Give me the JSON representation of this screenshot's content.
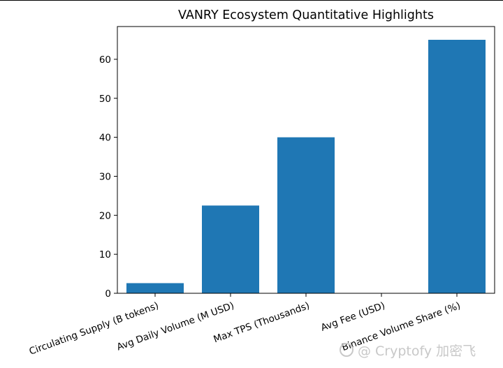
{
  "chart_data": {
    "type": "bar",
    "title": "VANRY Ecosystem Quantitative Highlights",
    "categories": [
      "Circulating Supply (B tokens)",
      "Avg Daily Volume (M USD)",
      "Max TPS (Thousands)",
      "Avg Fee (USD)",
      "Binance Volume Share (%)"
    ],
    "values": [
      2.6,
      22.5,
      40,
      0.0005,
      65
    ],
    "ylim": [
      0,
      68.4
    ],
    "yticks": [
      0,
      10,
      20,
      30,
      40,
      50,
      60
    ],
    "xlabel": "",
    "ylabel": "",
    "bar_color": "#1f77b4",
    "grid": false
  },
  "watermark": {
    "text": "@ Cryptofy 加密飞"
  }
}
